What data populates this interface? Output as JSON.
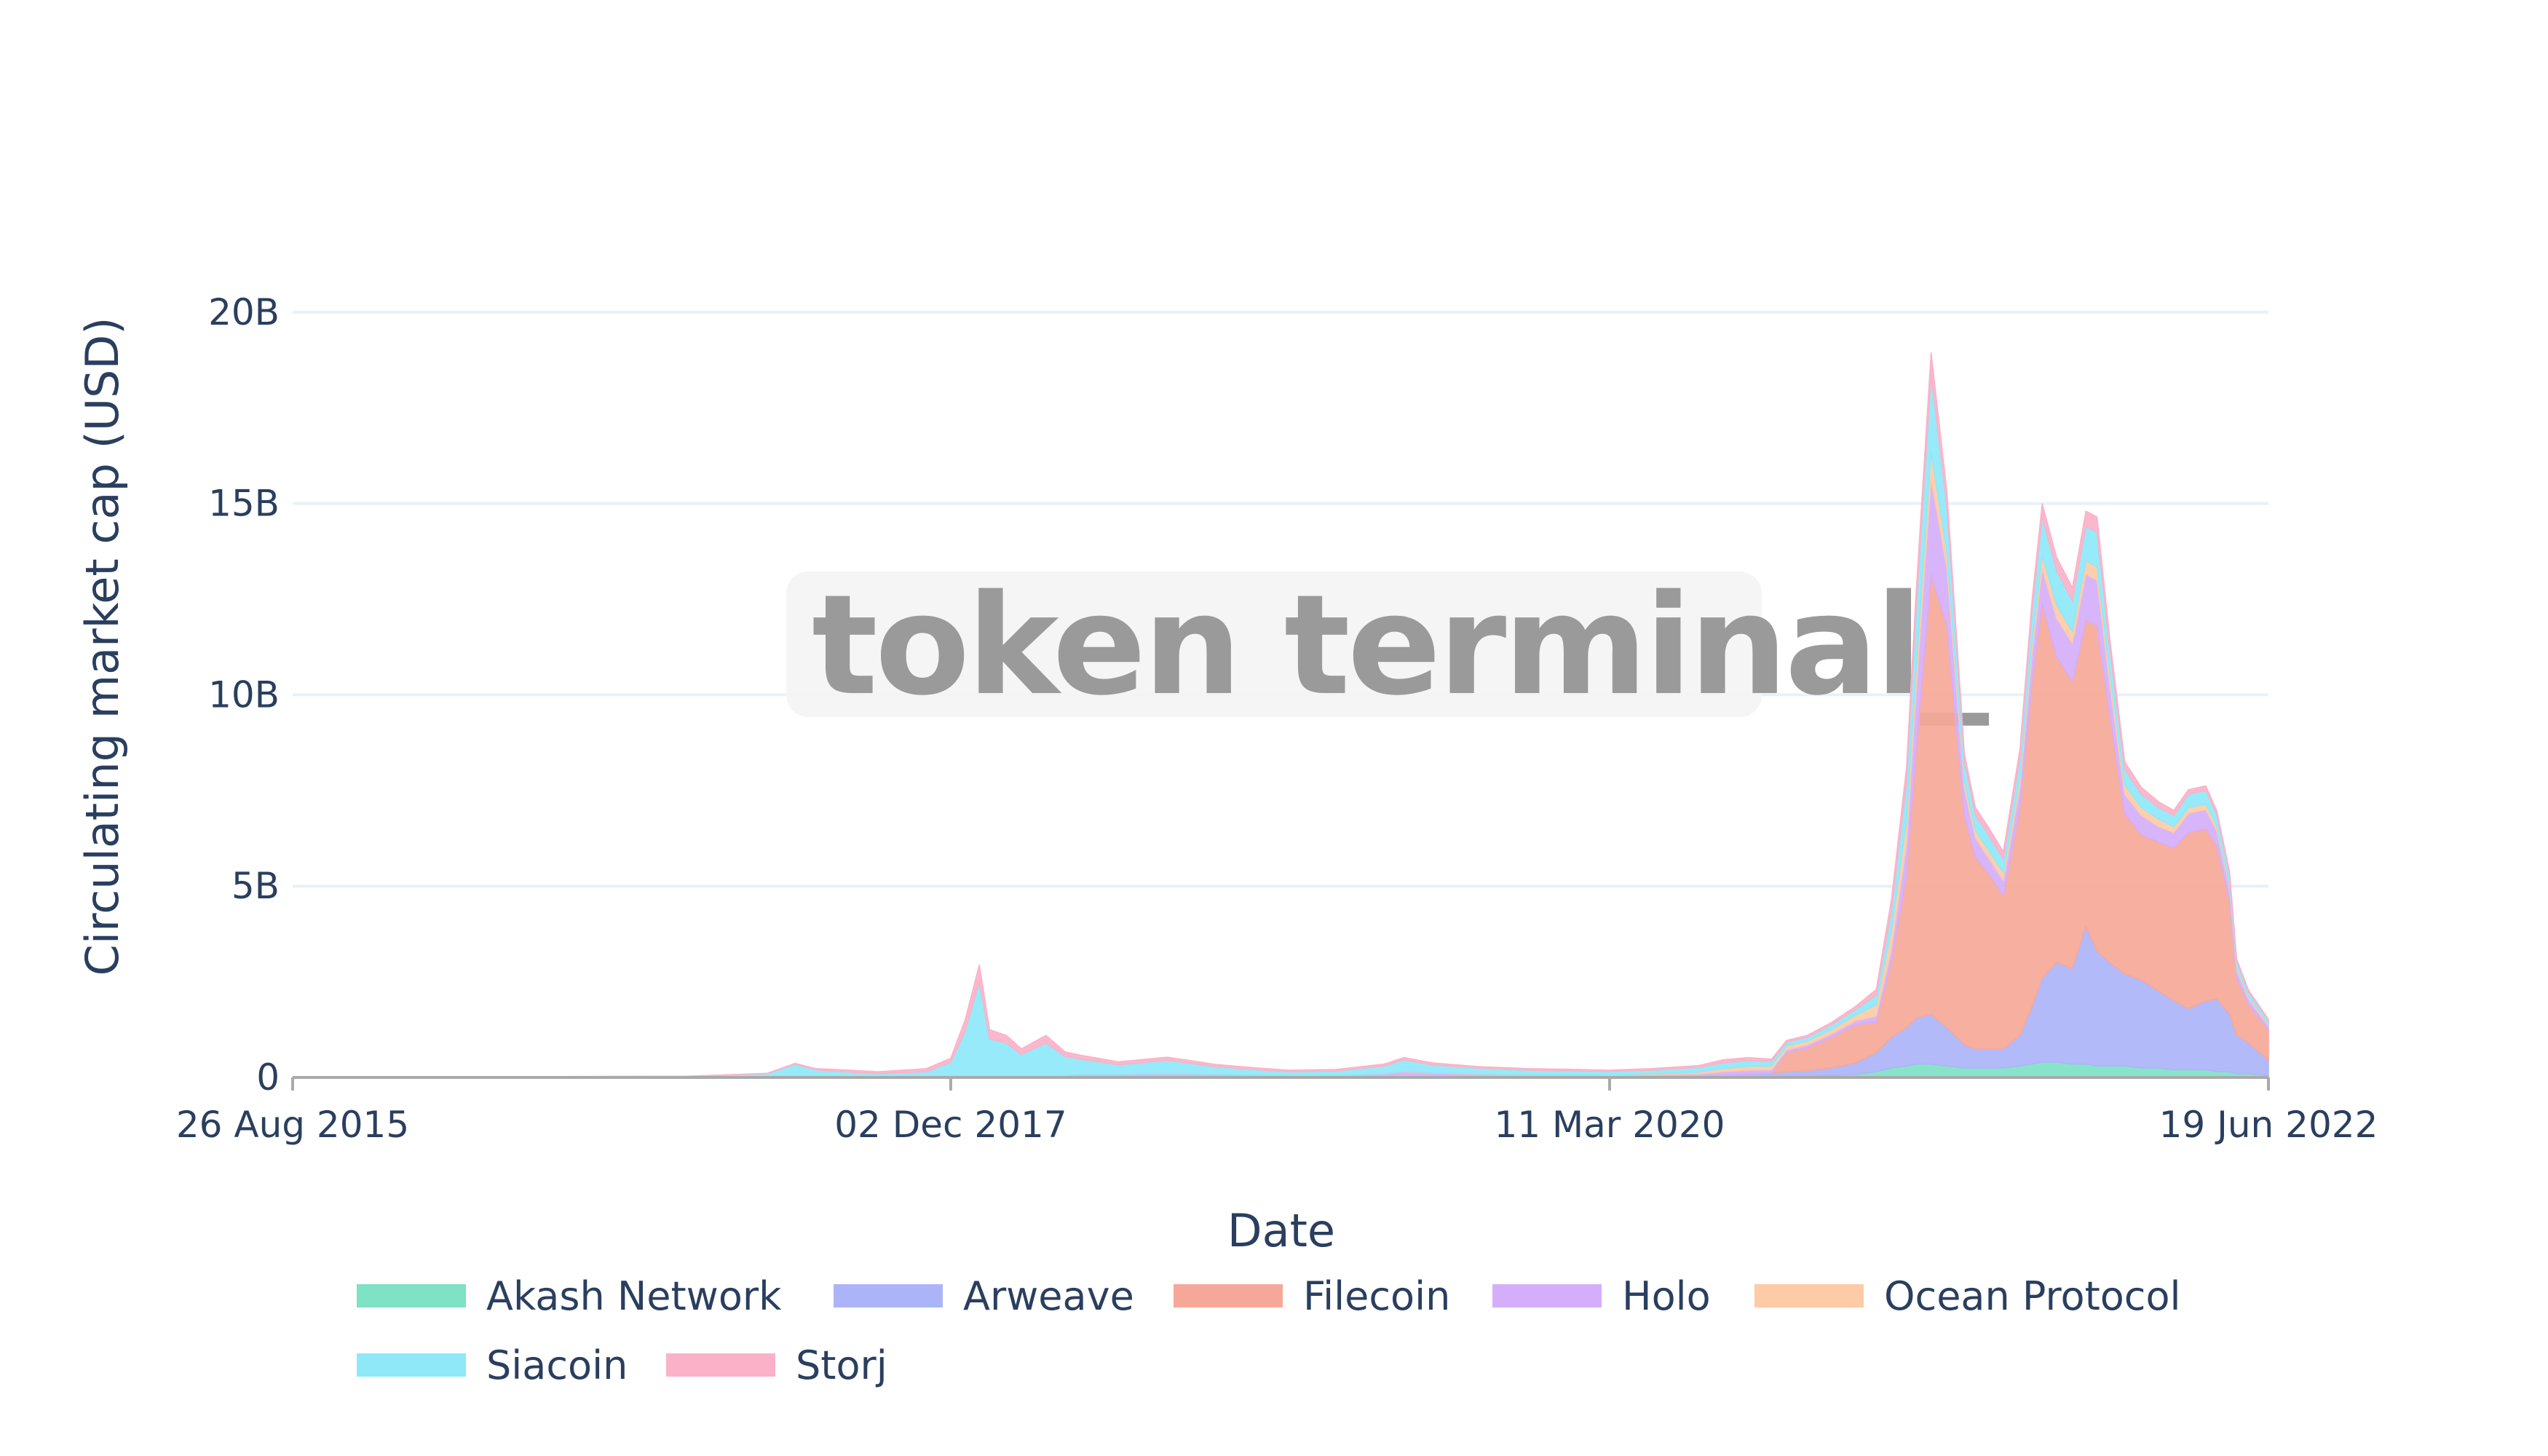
{
  "watermark": "token terminal_",
  "chart_data": {
    "type": "area",
    "stacked": true,
    "xlabel": "Date",
    "ylabel": "Circulating market cap (USD)",
    "x_ticks": [
      "26 Aug 2015",
      "02 Dec 2017",
      "11 Mar 2020",
      "19 Jun 2022"
    ],
    "x_range": [
      "2015-08-26",
      "2022-06-19"
    ],
    "y_ticks": [
      "0",
      "5B",
      "10B",
      "15B",
      "20B"
    ],
    "y_tick_values": [
      0,
      5,
      10,
      15,
      20
    ],
    "y_unit": "B",
    "ylim": [
      0,
      21.5
    ],
    "grid": true,
    "legend_position": "bottom",
    "dates": [
      "2015-08-26",
      "2016-06-01",
      "2017-01-01",
      "2017-04-15",
      "2017-05-20",
      "2017-06-15",
      "2017-07-20",
      "2017-09-01",
      "2017-11-01",
      "2017-12-02",
      "2017-12-20",
      "2018-01-07",
      "2018-01-20",
      "2018-02-10",
      "2018-03-01",
      "2018-04-01",
      "2018-04-25",
      "2018-05-15",
      "2018-07-01",
      "2018-09-01",
      "2018-11-01",
      "2018-12-15",
      "2019-02-01",
      "2019-04-01",
      "2019-06-01",
      "2019-06-26",
      "2019-08-01",
      "2019-10-01",
      "2019-12-01",
      "2020-02-01",
      "2020-03-11",
      "2020-05-01",
      "2020-07-01",
      "2020-08-01",
      "2020-09-01",
      "2020-10-01",
      "2020-10-20",
      "2020-11-15",
      "2020-12-15",
      "2021-01-15",
      "2021-02-10",
      "2021-03-01",
      "2021-03-20",
      "2021-04-01",
      "2021-04-20",
      "2021-05-10",
      "2021-06-01",
      "2021-06-15",
      "2021-07-01",
      "2021-07-20",
      "2021-08-10",
      "2021-08-25",
      "2021-09-07",
      "2021-09-25",
      "2021-10-15",
      "2021-11-01",
      "2021-11-15",
      "2021-12-01",
      "2021-12-20",
      "2022-01-10",
      "2022-02-01",
      "2022-02-20",
      "2022-03-10",
      "2022-04-01",
      "2022-04-15",
      "2022-05-01",
      "2022-05-10",
      "2022-05-25",
      "2022-06-19"
    ],
    "series": [
      {
        "name": "Akash Network",
        "color": "#7ee2c4",
        "values": [
          0,
          0,
          0,
          0,
          0,
          0,
          0,
          0,
          0,
          0,
          0,
          0,
          0,
          0,
          0,
          0,
          0,
          0,
          0,
          0,
          0,
          0,
          0,
          0,
          0,
          0,
          0,
          0,
          0,
          0,
          0,
          0,
          0,
          0,
          0.01,
          0.02,
          0.03,
          0.03,
          0.05,
          0.08,
          0.15,
          0.25,
          0.3,
          0.35,
          0.35,
          0.3,
          0.25,
          0.25,
          0.25,
          0.25,
          0.3,
          0.35,
          0.4,
          0.4,
          0.35,
          0.35,
          0.3,
          0.3,
          0.3,
          0.25,
          0.25,
          0.2,
          0.2,
          0.2,
          0.15,
          0.15,
          0.1,
          0.1,
          0.05
        ]
      },
      {
        "name": "Arweave",
        "color": "#acb4f8",
        "values": [
          0,
          0,
          0,
          0,
          0,
          0,
          0,
          0,
          0,
          0,
          0,
          0,
          0,
          0,
          0,
          0,
          0,
          0,
          0,
          0,
          0,
          0,
          0,
          0,
          0,
          0,
          0,
          0,
          0,
          0.01,
          0.01,
          0.02,
          0.03,
          0.05,
          0.08,
          0.1,
          0.12,
          0.15,
          0.2,
          0.3,
          0.5,
          0.8,
          1.0,
          1.2,
          1.3,
          1.0,
          0.6,
          0.5,
          0.5,
          0.5,
          0.8,
          1.5,
          2.2,
          2.6,
          2.5,
          3.6,
          3.0,
          2.7,
          2.4,
          2.3,
          2.0,
          1.8,
          1.6,
          1.8,
          1.9,
          1.5,
          1.0,
          0.8,
          0.4
        ]
      },
      {
        "name": "Filecoin",
        "color": "#f6a898",
        "values": [
          0,
          0,
          0,
          0,
          0,
          0,
          0,
          0,
          0,
          0,
          0,
          0,
          0,
          0,
          0,
          0,
          0,
          0,
          0,
          0,
          0,
          0,
          0,
          0,
          0,
          0,
          0,
          0,
          0,
          0,
          0,
          0,
          0,
          0,
          0,
          0,
          0.5,
          0.6,
          0.8,
          1.0,
          0.8,
          2.0,
          4.0,
          7.0,
          11.5,
          10.5,
          6.0,
          5.0,
          4.6,
          4.0,
          6.0,
          8.5,
          9.8,
          8.0,
          7.5,
          8.0,
          8.5,
          6.5,
          4.2,
          3.8,
          3.9,
          4.0,
          4.6,
          4.5,
          4.0,
          3.0,
          1.5,
          1.0,
          0.8
        ]
      },
      {
        "name": "Holo",
        "color": "#d5aefb",
        "values": [
          0,
          0,
          0,
          0,
          0,
          0,
          0,
          0,
          0,
          0,
          0,
          0,
          0,
          0,
          0,
          0,
          0.05,
          0.08,
          0.08,
          0.1,
          0.08,
          0.06,
          0.05,
          0.05,
          0.1,
          0.15,
          0.12,
          0.08,
          0.06,
          0.05,
          0.04,
          0.05,
          0.06,
          0.1,
          0.1,
          0.08,
          0.07,
          0.07,
          0.08,
          0.1,
          0.15,
          0.3,
          0.8,
          1.5,
          2.5,
          1.5,
          0.7,
          0.5,
          0.4,
          0.4,
          0.5,
          0.7,
          0.9,
          1.0,
          1.0,
          1.2,
          1.2,
          0.8,
          0.5,
          0.5,
          0.4,
          0.4,
          0.5,
          0.5,
          0.4,
          0.3,
          0.2,
          0.15,
          0.1
        ]
      },
      {
        "name": "Ocean Protocol",
        "color": "#fdcba6",
        "values": [
          0,
          0,
          0,
          0,
          0,
          0,
          0,
          0,
          0,
          0,
          0,
          0,
          0,
          0,
          0,
          0,
          0,
          0,
          0,
          0,
          0,
          0,
          0,
          0,
          0,
          0.01,
          0.01,
          0.01,
          0.01,
          0.01,
          0.01,
          0.02,
          0.05,
          0.08,
          0.1,
          0.1,
          0.1,
          0.1,
          0.12,
          0.15,
          0.3,
          0.5,
          0.6,
          0.6,
          0.7,
          0.4,
          0.2,
          0.2,
          0.2,
          0.2,
          0.25,
          0.3,
          0.35,
          0.35,
          0.3,
          0.35,
          0.35,
          0.3,
          0.25,
          0.2,
          0.2,
          0.15,
          0.15,
          0.15,
          0.12,
          0.1,
          0.08,
          0.06,
          0.05
        ]
      },
      {
        "name": "Siacoin",
        "color": "#8ee8f8",
        "values": [
          0.01,
          0.02,
          0.03,
          0.1,
          0.35,
          0.2,
          0.15,
          0.1,
          0.15,
          0.4,
          1.2,
          2.5,
          1.0,
          0.9,
          0.6,
          0.9,
          0.5,
          0.4,
          0.25,
          0.35,
          0.2,
          0.15,
          0.1,
          0.12,
          0.2,
          0.3,
          0.2,
          0.15,
          0.12,
          0.1,
          0.1,
          0.1,
          0.12,
          0.15,
          0.15,
          0.12,
          0.1,
          0.1,
          0.12,
          0.15,
          0.25,
          0.5,
          1.0,
          1.5,
          2.0,
          1.2,
          0.5,
          0.4,
          0.4,
          0.35,
          0.5,
          0.8,
          1.0,
          0.9,
          0.8,
          0.9,
          0.9,
          0.6,
          0.4,
          0.35,
          0.3,
          0.3,
          0.35,
          0.35,
          0.3,
          0.25,
          0.15,
          0.12,
          0.08
        ]
      },
      {
        "name": "Storj",
        "color": "#fbb2c8",
        "values": [
          0,
          0,
          0,
          0.01,
          0.02,
          0.03,
          0.05,
          0.05,
          0.08,
          0.1,
          0.3,
          0.45,
          0.25,
          0.2,
          0.15,
          0.2,
          0.12,
          0.1,
          0.08,
          0.08,
          0.06,
          0.05,
          0.04,
          0.04,
          0.05,
          0.06,
          0.05,
          0.04,
          0.04,
          0.04,
          0.03,
          0.04,
          0.05,
          0.08,
          0.08,
          0.06,
          0.05,
          0.05,
          0.06,
          0.08,
          0.15,
          0.3,
          0.4,
          0.5,
          0.6,
          0.4,
          0.2,
          0.2,
          0.2,
          0.2,
          0.25,
          0.3,
          0.35,
          0.35,
          0.35,
          0.4,
          0.4,
          0.3,
          0.2,
          0.18,
          0.15,
          0.13,
          0.12,
          0.12,
          0.1,
          0.08,
          0.06,
          0.05,
          0.04
        ]
      }
    ]
  }
}
